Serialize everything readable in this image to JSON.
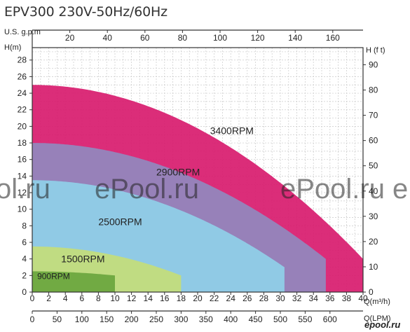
{
  "title": "EPV300 230V-50Hz/60Hz",
  "chart_data": {
    "type": "area",
    "x_bottom_label": "Q(m³/h)",
    "x_bottom_ticks": [
      0,
      2,
      4,
      6,
      8,
      10,
      12,
      14,
      16,
      18,
      20,
      22,
      24,
      26,
      28,
      30,
      32,
      34,
      36,
      38,
      40
    ],
    "x_lpm_label": "Q(LPM)",
    "x_lpm_ticks": [
      0,
      50,
      100,
      150,
      200,
      250,
      300,
      350,
      400,
      450,
      500,
      550,
      600
    ],
    "x_top_label": "U.S. g.p.m",
    "x_top_ticks": [
      20,
      40,
      60,
      80,
      100,
      120,
      140,
      160
    ],
    "y_left_label": "H(m)",
    "y_left_ticks": [
      0,
      2,
      4,
      6,
      8,
      10,
      12,
      14,
      16,
      18,
      20,
      22,
      24,
      26,
      28
    ],
    "y_right_label": "H (f t)",
    "y_right_ticks": [
      0,
      10,
      20,
      30,
      40,
      50,
      60,
      70,
      80,
      90
    ],
    "xlim": [
      0,
      40
    ],
    "ylim": [
      0,
      29.5
    ],
    "grid": true,
    "series": [
      {
        "name": "3400RPM",
        "color": "#d81b6e",
        "shutoff_head": 25,
        "max_flow": 40,
        "end_head": 4
      },
      {
        "name": "2900RPM",
        "color": "#9189bf",
        "shutoff_head": 18,
        "max_flow": 35.5,
        "end_head": 4
      },
      {
        "name": "2500RPM",
        "color": "#8fd0e8",
        "shutoff_head": 13.5,
        "max_flow": 30.5,
        "end_head": 3
      },
      {
        "name": "1500RPM",
        "color": "#c4dd7a",
        "shutoff_head": 5.5,
        "max_flow": 18,
        "end_head": 2
      },
      {
        "name": "900RPM",
        "color": "#6aa53e",
        "shutoff_head": 2.5,
        "max_flow": 10,
        "end_head": 2
      }
    ]
  },
  "watermarks": [
    "ol.ru",
    "ePool.ru",
    "ePool.ru",
    "ePool.ru"
  ],
  "brand": "epool.ru"
}
